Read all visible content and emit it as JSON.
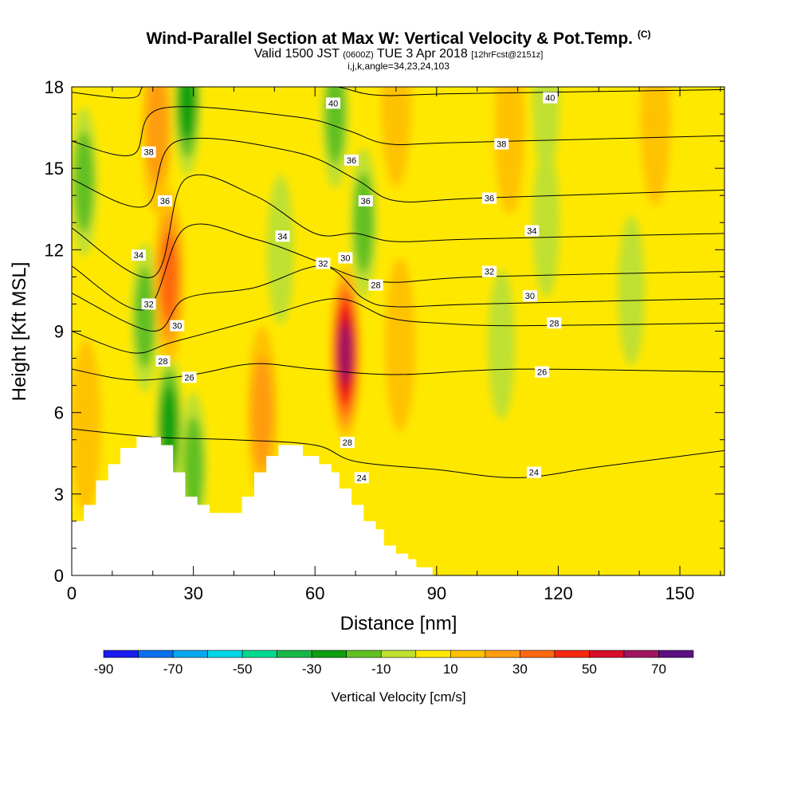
{
  "title": {
    "main": "Wind-Parallel Section at Max W: Vertical Velocity & Pot.Temp.",
    "main_mark": "(C)",
    "valid_prefix": "Valid 1500 JST",
    "valid_utc": "(0600Z)",
    "valid_date": "TUE 3 Apr 2018",
    "forecast": "[12hrFcst@2151z]",
    "params": "i,j,k,angle=34,23,24,103"
  },
  "chart_data": {
    "type": "heatmap",
    "xlabel": "Distance [nm]",
    "ylabel": "Height [Kft MSL]",
    "xlim": [
      0,
      161
    ],
    "ylim": [
      0,
      18
    ],
    "x_ticks": [
      0,
      30,
      60,
      90,
      120,
      150
    ],
    "y_ticks": [
      0,
      3,
      6,
      9,
      12,
      15,
      18
    ],
    "background_field": "Vertical Velocity",
    "colorbar": {
      "title": "Vertical Velocity [cm/s]",
      "tick_labels": [
        "-90",
        "-70",
        "-50",
        "-30",
        "-10",
        "10",
        "30",
        "50",
        "70"
      ],
      "levels": [
        -90,
        -80,
        -70,
        -60,
        -50,
        -40,
        -30,
        -20,
        -10,
        0,
        10,
        20,
        30,
        40,
        50,
        60,
        70
      ],
      "colors": [
        "#1b1bf0",
        "#0a70f0",
        "#00a8f0",
        "#00d6e8",
        "#00d890",
        "#18b848",
        "#0ca010",
        "#60c020",
        "#c0e030",
        "#ffe800",
        "#ffc200",
        "#ff9c10",
        "#ff6810",
        "#f62810",
        "#d80c28",
        "#a01460",
        "#5c1080"
      ]
    },
    "updraft_cores": [
      {
        "x": 24,
        "y": 11.0,
        "value": 40
      },
      {
        "x": 21,
        "y": 16.5,
        "value": 30
      },
      {
        "x": 67.5,
        "y": 8.2,
        "value": 70
      },
      {
        "x": 47,
        "y": 6.0,
        "value": 30
      },
      {
        "x": 3.5,
        "y": 5.5,
        "value": 20
      },
      {
        "x": 80,
        "y": 17.5,
        "value": 20
      },
      {
        "x": 81,
        "y": 8.5,
        "value": 15
      },
      {
        "x": 108,
        "y": 16.5,
        "value": 15
      },
      {
        "x": 144,
        "y": 16.8,
        "value": 15
      }
    ],
    "downdraft_cores": [
      {
        "x": 24,
        "y": 5.5,
        "value": -30
      },
      {
        "x": 28.5,
        "y": 17.5,
        "value": -25
      },
      {
        "x": 18,
        "y": 9.5,
        "value": -20
      },
      {
        "x": 30,
        "y": 4.0,
        "value": -15
      },
      {
        "x": 3,
        "y": 14.5,
        "value": -15
      },
      {
        "x": 65,
        "y": 17.0,
        "value": -15
      },
      {
        "x": 72,
        "y": 13.0,
        "value": -15
      },
      {
        "x": 51.5,
        "y": 12.0,
        "value": -12
      },
      {
        "x": 106,
        "y": 8.5,
        "value": -12
      },
      {
        "x": 117,
        "y": 13.0,
        "value": -10
      },
      {
        "x": 138,
        "y": 10.5,
        "value": -10
      },
      {
        "x": 117,
        "y": 17.5,
        "value": -10
      }
    ],
    "contour_field": "Potential Temperature (C)",
    "contours": [
      {
        "value": 40,
        "points": [
          [
            0,
            17.8
          ],
          [
            15,
            17.6
          ],
          [
            22,
            18.2
          ],
          [
            60,
            18.1
          ],
          [
            75,
            17.7
          ],
          [
            95,
            17.75
          ],
          [
            161,
            17.9
          ]
        ]
      },
      {
        "value": 38,
        "points": [
          [
            0,
            16.0
          ],
          [
            15,
            15.5
          ],
          [
            22,
            17.2
          ],
          [
            55,
            16.9
          ],
          [
            68,
            16.4
          ],
          [
            78,
            15.9
          ],
          [
            95,
            15.95
          ],
          [
            161,
            16.2
          ]
        ]
      },
      {
        "value": 36,
        "points": [
          [
            0,
            14.6
          ],
          [
            18,
            13.6
          ],
          [
            26,
            16.0
          ],
          [
            55,
            15.6
          ],
          [
            70,
            14.6
          ],
          [
            80,
            13.8
          ],
          [
            100,
            13.9
          ],
          [
            161,
            14.2
          ]
        ]
      },
      {
        "value": 34,
        "points": [
          [
            0,
            12.8
          ],
          [
            20,
            11.0
          ],
          [
            28,
            14.6
          ],
          [
            45,
            14.0
          ],
          [
            60,
            12.6
          ],
          [
            70,
            12.6
          ],
          [
            80,
            12.3
          ],
          [
            100,
            12.4
          ],
          [
            161,
            12.6
          ]
        ]
      },
      {
        "value": 32,
        "points": [
          [
            0,
            11.4
          ],
          [
            18,
            9.8
          ],
          [
            28,
            12.8
          ],
          [
            45,
            12.4
          ],
          [
            60,
            11.6
          ],
          [
            70,
            11.0
          ],
          [
            80,
            10.8
          ],
          [
            100,
            11.0
          ],
          [
            161,
            11.2
          ]
        ]
      },
      {
        "value": 30,
        "points": [
          [
            0,
            10.4
          ],
          [
            20,
            9.0
          ],
          [
            28,
            10.2
          ],
          [
            45,
            10.6
          ],
          [
            62,
            11.4
          ],
          [
            72,
            10.2
          ],
          [
            80,
            9.9
          ],
          [
            100,
            10.0
          ],
          [
            161,
            10.2
          ]
        ]
      },
      {
        "value": 28,
        "points": [
          [
            0,
            9.0
          ],
          [
            15,
            8.2
          ],
          [
            25,
            8.6
          ],
          [
            45,
            9.4
          ],
          [
            65,
            10.2
          ],
          [
            78,
            9.5
          ],
          [
            90,
            9.3
          ],
          [
            110,
            9.2
          ],
          [
            161,
            9.3
          ]
        ]
      },
      {
        "value": 26,
        "points": [
          [
            0,
            7.6
          ],
          [
            15,
            7.2
          ],
          [
            30,
            7.4
          ],
          [
            45,
            7.8
          ],
          [
            60,
            7.6
          ],
          [
            80,
            7.4
          ],
          [
            110,
            7.6
          ],
          [
            161,
            7.5
          ]
        ]
      },
      {
        "value": 24,
        "points": [
          [
            0,
            5.4
          ],
          [
            20,
            5.1
          ],
          [
            40,
            5.0
          ],
          [
            60,
            4.8
          ],
          [
            70,
            4.2
          ],
          [
            90,
            3.9
          ],
          [
            110,
            3.6
          ],
          [
            130,
            4.0
          ],
          [
            161,
            4.6
          ]
        ]
      }
    ],
    "contour_labels": [
      {
        "text": "40",
        "x": 64.5,
        "y": 17.4
      },
      {
        "text": "40",
        "x": 118,
        "y": 17.6
      },
      {
        "text": "38",
        "x": 19,
        "y": 15.6
      },
      {
        "text": "38",
        "x": 106,
        "y": 15.9
      },
      {
        "text": "36",
        "x": 23,
        "y": 13.8
      },
      {
        "text": "36",
        "x": 69,
        "y": 15.3
      },
      {
        "text": "36",
        "x": 72.5,
        "y": 13.8
      },
      {
        "text": "36",
        "x": 103,
        "y": 13.9
      },
      {
        "text": "34",
        "x": 52,
        "y": 12.5
      },
      {
        "text": "34",
        "x": 16.5,
        "y": 11.8
      },
      {
        "text": "34",
        "x": 113.5,
        "y": 12.7
      },
      {
        "text": "32",
        "x": 62,
        "y": 11.5
      },
      {
        "text": "32",
        "x": 19,
        "y": 10.0
      },
      {
        "text": "32",
        "x": 103,
        "y": 11.2
      },
      {
        "text": "30",
        "x": 67.5,
        "y": 11.7
      },
      {
        "text": "30",
        "x": 26,
        "y": 9.2
      },
      {
        "text": "30",
        "x": 113,
        "y": 10.3
      },
      {
        "text": "28",
        "x": 75,
        "y": 10.7
      },
      {
        "text": "28",
        "x": 22.5,
        "y": 7.9
      },
      {
        "text": "28",
        "x": 119,
        "y": 9.3
      },
      {
        "text": "28",
        "x": 68,
        "y": 4.9
      },
      {
        "text": "26",
        "x": 29,
        "y": 7.3
      },
      {
        "text": "26",
        "x": 116,
        "y": 7.5
      },
      {
        "text": "24",
        "x": 71.5,
        "y": 3.6
      },
      {
        "text": "24",
        "x": 114,
        "y": 3.8
      }
    ],
    "terrain": [
      [
        0,
        2.0
      ],
      [
        3,
        2.0
      ],
      [
        3,
        2.6
      ],
      [
        6,
        2.6
      ],
      [
        6,
        3.5
      ],
      [
        9,
        3.5
      ],
      [
        9,
        4.1
      ],
      [
        12,
        4.1
      ],
      [
        12,
        4.7
      ],
      [
        16,
        4.7
      ],
      [
        16,
        5.1
      ],
      [
        22,
        5.1
      ],
      [
        22,
        4.8
      ],
      [
        25,
        4.8
      ],
      [
        25,
        3.8
      ],
      [
        28,
        3.8
      ],
      [
        28,
        2.9
      ],
      [
        31,
        2.9
      ],
      [
        31,
        2.6
      ],
      [
        34,
        2.6
      ],
      [
        34,
        2.3
      ],
      [
        42,
        2.3
      ],
      [
        42,
        2.9
      ],
      [
        45,
        2.9
      ],
      [
        45,
        3.8
      ],
      [
        48,
        3.8
      ],
      [
        48,
        4.4
      ],
      [
        51,
        4.4
      ],
      [
        51,
        4.8
      ],
      [
        57,
        4.8
      ],
      [
        57,
        4.4
      ],
      [
        61,
        4.4
      ],
      [
        61,
        4.1
      ],
      [
        64,
        4.1
      ],
      [
        64,
        3.8
      ],
      [
        66,
        3.8
      ],
      [
        66,
        3.2
      ],
      [
        69,
        3.2
      ],
      [
        69,
        2.6
      ],
      [
        72,
        2.6
      ],
      [
        72,
        2.0
      ],
      [
        75,
        2.0
      ],
      [
        75,
        1.7
      ],
      [
        77,
        1.7
      ],
      [
        77,
        1.1
      ],
      [
        80,
        1.1
      ],
      [
        80,
        0.8
      ],
      [
        83,
        0.8
      ],
      [
        83,
        0.6
      ],
      [
        85,
        0.6
      ],
      [
        85,
        0.3
      ],
      [
        89,
        0.3
      ],
      [
        89,
        0
      ],
      [
        0,
        0
      ]
    ]
  }
}
